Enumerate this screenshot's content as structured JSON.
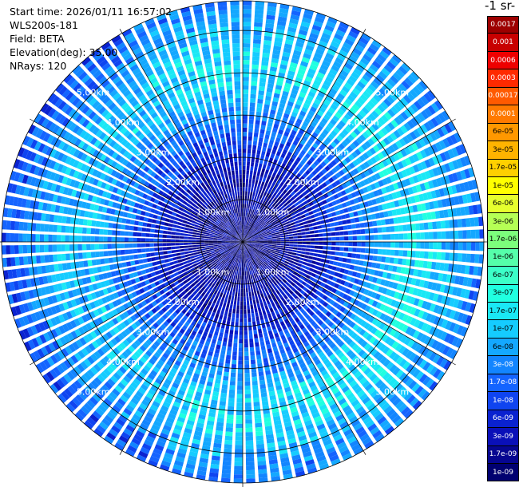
{
  "info": {
    "start_time": "Start time: 2026/01/11 16:57:02",
    "instrument": "WLS200s-181",
    "field": "Field: BETA",
    "elevation": "Elevation(deg): 35.00",
    "nrays": "NRays: 120"
  },
  "colorbar": {
    "title": "-1 sr-",
    "levels": [
      {
        "label": "0.0017",
        "color": "#9d0000"
      },
      {
        "label": "0.001",
        "color": "#c80000"
      },
      {
        "label": "0.0006",
        "color": "#ee0000"
      },
      {
        "label": "0.0003",
        "color": "#ff2a00"
      },
      {
        "label": "0.00017",
        "color": "#ff5a00"
      },
      {
        "label": "0.0001",
        "color": "#ff7a00"
      },
      {
        "label": "6e-05",
        "color": "#ff9800"
      },
      {
        "label": "3e-05",
        "color": "#ffb300"
      },
      {
        "label": "1.7e-05",
        "color": "#ffd000"
      },
      {
        "label": "1e-05",
        "color": "#ffff00"
      },
      {
        "label": "6e-06",
        "color": "#e6ff2e"
      },
      {
        "label": "3e-06",
        "color": "#b5ff55"
      },
      {
        "label": "1.7e-06",
        "color": "#7cff7c"
      },
      {
        "label": "1e-06",
        "color": "#55ffaa"
      },
      {
        "label": "6e-07",
        "color": "#3cffc8"
      },
      {
        "label": "3e-07",
        "color": "#20ffe0"
      },
      {
        "label": "1.7e-07",
        "color": "#1ae8f5"
      },
      {
        "label": "1e-07",
        "color": "#15ccff"
      },
      {
        "label": "6e-08",
        "color": "#14a8ff"
      },
      {
        "label": "3e-08",
        "color": "#1385ff"
      },
      {
        "label": "1.7e-08",
        "color": "#1464ff"
      },
      {
        "label": "1e-08",
        "color": "#0f44f0"
      },
      {
        "label": "6e-09",
        "color": "#0a22d0"
      },
      {
        "label": "3e-09",
        "color": "#0a10b8"
      },
      {
        "label": "1.7e-09",
        "color": "#060690"
      },
      {
        "label": "1e-09",
        "color": "#000070"
      }
    ]
  },
  "chart_data": {
    "type": "heatmap",
    "projection": "polar PPI",
    "field": "BETA",
    "colorscale": "log",
    "range_rings_km": [
      {
        "range": 1,
        "label": "1.00km"
      },
      {
        "range": 2,
        "label": "2.00km"
      },
      {
        "range": 3,
        "label": "3.00km"
      },
      {
        "range": 4,
        "label": "4.00km"
      },
      {
        "range": 5,
        "label": "5.00km"
      }
    ],
    "max_range_km": 5.7,
    "azimuth_spokes_deg": [
      0,
      30,
      60,
      90,
      120,
      150,
      180,
      210,
      240,
      270,
      300,
      330
    ],
    "rays": 120,
    "range_profile": [
      {
        "range": 0.0,
        "beta": 1.5e-09
      },
      {
        "range": 1.0,
        "beta": 2e-09
      },
      {
        "range": 1.8,
        "beta": 4e-09
      },
      {
        "range": 2.3,
        "beta": 1e-08
      },
      {
        "range": 2.8,
        "beta": 2e-08
      },
      {
        "range": 3.3,
        "beta": 5e-08
      },
      {
        "range": 3.8,
        "beta": 1.3e-07
      },
      {
        "range": 4.3,
        "beta": 1.5e-07
      },
      {
        "range": 4.8,
        "beta": 8e-08
      },
      {
        "range": 5.3,
        "beta": 4e-08
      },
      {
        "range": 5.7,
        "beta": 2e-08
      }
    ]
  }
}
